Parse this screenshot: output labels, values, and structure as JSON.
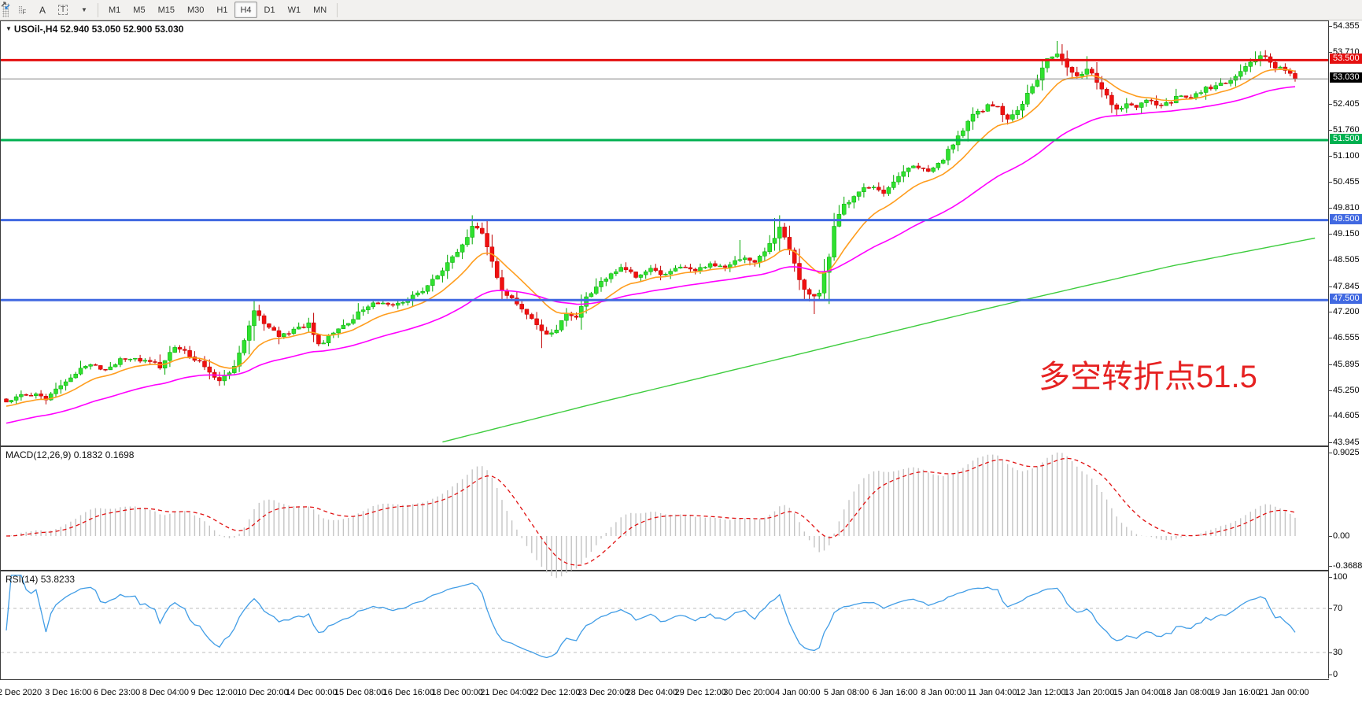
{
  "toolbar": {
    "tools": [
      {
        "name": "indicator-grid-icon",
        "label": "F"
      },
      {
        "name": "text-label-icon",
        "label": "A"
      },
      {
        "name": "text-box-icon",
        "label": "T"
      },
      {
        "name": "cursor-tools-icon",
        "label": "",
        "caret": "▾"
      }
    ],
    "timeframes": [
      "M1",
      "M5",
      "M15",
      "M30",
      "H1",
      "H4",
      "D1",
      "W1",
      "MN"
    ],
    "active_timeframe": "H4"
  },
  "chart": {
    "title_full": "USOil-,H4  52.940 53.050 52.900 53.030",
    "symbol": "USOil-",
    "timeframe": "H4",
    "quote": {
      "open": "52.940",
      "high": "53.050",
      "low": "52.900",
      "close": "53.030"
    },
    "annotation": {
      "text": "多空转折点51.5",
      "color": "#e62222"
    },
    "current_price_badge": "53.030"
  },
  "macd_panel": {
    "label": "MACD(12,26,9)",
    "values": "0.1832 0.1698",
    "ticks": [
      "0.9025",
      "0.00",
      "-0.3688"
    ]
  },
  "rsi_panel": {
    "label": "RSI(14)",
    "value": "53.8233",
    "ticks": [
      "100",
      "70",
      "30",
      "0"
    ]
  },
  "chart_data": {
    "type": "candlestick",
    "title": "USOil H4",
    "x_labels": [
      "2 Dec 2020",
      "3 Dec 16:00",
      "6 Dec 23:00",
      "8 Dec 04:00",
      "9 Dec 12:00",
      "10 Dec 20:00",
      "14 Dec 00:00",
      "15 Dec 08:00",
      "16 Dec 16:00",
      "18 Dec 00:00",
      "21 Dec 04:00",
      "22 Dec 12:00",
      "23 Dec 20:00",
      "28 Dec 04:00",
      "29 Dec 12:00",
      "30 Dec 20:00",
      "4 Jan 00:00",
      "5 Jan 08:00",
      "6 Jan 16:00",
      "8 Jan 00:00",
      "11 Jan 04:00",
      "12 Jan 12:00",
      "13 Jan 20:00",
      "15 Jan 04:00",
      "18 Jan 08:00",
      "19 Jan 16:00",
      "21 Jan 00:00"
    ],
    "y_axis_ticks": [
      54.355,
      53.71,
      52.405,
      51.76,
      51.1,
      50.455,
      49.81,
      49.15,
      48.505,
      47.845,
      47.2,
      46.555,
      45.895,
      45.25,
      44.605,
      43.945
    ],
    "y_range": [
      43.945,
      54.355
    ],
    "candle_count": 261,
    "seed": 20210121,
    "close_anchors": [
      [
        0,
        44.95
      ],
      [
        4,
        45.15
      ],
      [
        8,
        45.05
      ],
      [
        12,
        45.5
      ],
      [
        16,
        45.85
      ],
      [
        20,
        45.8
      ],
      [
        24,
        46.05
      ],
      [
        28,
        46.0
      ],
      [
        31,
        45.85
      ],
      [
        34,
        46.35
      ],
      [
        37,
        46.1
      ],
      [
        40,
        45.85
      ],
      [
        43,
        45.45
      ],
      [
        46,
        45.8
      ],
      [
        48,
        46.45
      ],
      [
        50,
        47.2
      ],
      [
        52,
        46.95
      ],
      [
        55,
        46.6
      ],
      [
        58,
        46.75
      ],
      [
        61,
        46.9
      ],
      [
        63,
        46.35
      ],
      [
        66,
        46.7
      ],
      [
        69,
        46.95
      ],
      [
        72,
        47.3
      ],
      [
        75,
        47.45
      ],
      [
        78,
        47.35
      ],
      [
        81,
        47.5
      ],
      [
        84,
        47.75
      ],
      [
        87,
        48.1
      ],
      [
        90,
        48.55
      ],
      [
        92,
        48.9
      ],
      [
        94,
        49.3
      ],
      [
        96,
        49.2
      ],
      [
        98,
        48.45
      ],
      [
        100,
        47.75
      ],
      [
        103,
        47.45
      ],
      [
        106,
        47.0
      ],
      [
        109,
        46.6
      ],
      [
        111,
        46.8
      ],
      [
        113,
        47.15
      ],
      [
        115,
        47.05
      ],
      [
        117,
        47.55
      ],
      [
        119,
        47.85
      ],
      [
        121,
        48.05
      ],
      [
        124,
        48.3
      ],
      [
        127,
        48.1
      ],
      [
        130,
        48.3
      ],
      [
        133,
        48.1
      ],
      [
        136,
        48.35
      ],
      [
        139,
        48.25
      ],
      [
        142,
        48.4
      ],
      [
        145,
        48.3
      ],
      [
        148,
        48.55
      ],
      [
        151,
        48.45
      ],
      [
        154,
        48.9
      ],
      [
        156,
        49.3
      ],
      [
        158,
        48.8
      ],
      [
        160,
        48.0
      ],
      [
        162,
        47.6
      ],
      [
        164,
        47.7
      ],
      [
        166,
        48.6
      ],
      [
        167,
        49.4
      ],
      [
        169,
        49.9
      ],
      [
        171,
        50.1
      ],
      [
        174,
        50.35
      ],
      [
        177,
        50.15
      ],
      [
        180,
        50.55
      ],
      [
        183,
        50.9
      ],
      [
        186,
        50.75
      ],
      [
        189,
        51.05
      ],
      [
        192,
        51.6
      ],
      [
        195,
        52.1
      ],
      [
        198,
        52.35
      ],
      [
        200,
        52.3
      ],
      [
        202,
        52.0
      ],
      [
        205,
        52.45
      ],
      [
        208,
        53.05
      ],
      [
        210,
        53.5
      ],
      [
        212,
        53.7
      ],
      [
        214,
        53.35
      ],
      [
        216,
        53.1
      ],
      [
        218,
        53.3
      ],
      [
        220,
        52.95
      ],
      [
        222,
        52.6
      ],
      [
        224,
        52.25
      ],
      [
        226,
        52.45
      ],
      [
        228,
        52.35
      ],
      [
        230,
        52.5
      ],
      [
        233,
        52.35
      ],
      [
        236,
        52.55
      ],
      [
        239,
        52.6
      ],
      [
        242,
        52.8
      ],
      [
        245,
        52.9
      ],
      [
        248,
        53.1
      ],
      [
        250,
        53.3
      ],
      [
        252,
        53.55
      ],
      [
        254,
        53.6
      ],
      [
        256,
        53.35
      ],
      [
        258,
        53.25
      ],
      [
        260,
        53.03
      ]
    ],
    "final_close": 53.03,
    "wick_events": [
      [
        94,
        "hi",
        49.45
      ],
      [
        95,
        "hi",
        49.42
      ],
      [
        108,
        "lo",
        46.3
      ],
      [
        148,
        "hi",
        49.0
      ],
      [
        155,
        "hi",
        49.55
      ],
      [
        156,
        "hi",
        49.62
      ],
      [
        163,
        "lo",
        47.15
      ],
      [
        166,
        "lo",
        47.4
      ],
      [
        212,
        "hi",
        53.98
      ],
      [
        213,
        "hi",
        53.9
      ],
      [
        218,
        "hi",
        53.6
      ],
      [
        252,
        "hi",
        53.72
      ],
      [
        254,
        "hi",
        53.75
      ]
    ],
    "horizontal_lines": [
      {
        "price": 53.5,
        "label": "53.500",
        "color": "#e41010",
        "width": 3
      },
      {
        "price": 51.5,
        "label": "51.500",
        "color": "#00b050",
        "width": 3
      },
      {
        "price": 49.5,
        "label": "49.500",
        "color": "#4169e1",
        "width": 3
      },
      {
        "price": 47.5,
        "label": "47.500",
        "color": "#4169e1",
        "width": 3
      }
    ],
    "current_price": {
      "price": 53.03,
      "label": "53.030",
      "line_color": "#808080",
      "badge_color": "#000000"
    },
    "moving_averages": [
      {
        "name": "fast-ma",
        "color": "#ff9d1e",
        "type": "ema",
        "period": 13
      },
      {
        "name": "slow-ma",
        "color": "#ff00ff",
        "type": "ema",
        "period": 45
      },
      {
        "name": "long-ma",
        "color": "#3dcc3d",
        "type": "anchors",
        "anchors": [
          [
            88,
            43.95
          ],
          [
            120,
            44.95
          ],
          [
            160,
            46.15
          ],
          [
            200,
            47.35
          ],
          [
            235,
            48.35
          ],
          [
            264,
            49.05
          ]
        ]
      }
    ],
    "macd": {
      "fast": 12,
      "slow": 26,
      "signal": 9,
      "display_max": 0.9025,
      "display_min": -0.3688,
      "current": 0.1832,
      "current_signal": 0.1698,
      "histogram_color": "#c4c4c4",
      "signal_color": "#e01010"
    },
    "rsi": {
      "period": 14,
      "current": 53.8233,
      "levels": [
        70,
        30
      ],
      "line_color": "#419de6",
      "level_color": "#bdbdbd"
    },
    "colors": {
      "up": "#2fe12f",
      "up_border": "#00a800",
      "down": "#f01010",
      "down_border": "#c00000"
    }
  }
}
